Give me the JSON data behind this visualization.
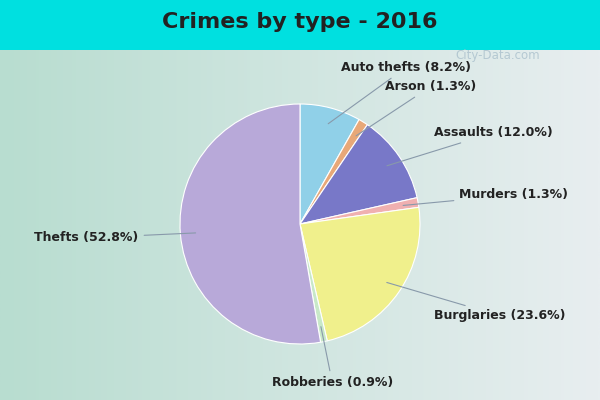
{
  "title": "Crimes by type - 2016",
  "labels": [
    "Thefts",
    "Burglaries",
    "Robberies",
    "Murders",
    "Assaults",
    "Arson",
    "Auto thefts"
  ],
  "percentages": [
    52.8,
    23.6,
    0.9,
    1.3,
    12.0,
    1.3,
    8.2
  ],
  "colors": [
    "#b8a9d9",
    "#f0f08c",
    "#c8e8c8",
    "#f0b0b0",
    "#7878c8",
    "#e8a878",
    "#90d0e8"
  ],
  "background_top": "#00e0e0",
  "background_left": "#b8ddd0",
  "background_right": "#e8eef0",
  "title_fontsize": 16,
  "label_fontsize": 9,
  "watermark": "City-Data.com",
  "pie_order": [
    6,
    5,
    4,
    3,
    1,
    2,
    0
  ],
  "startangle": 90
}
